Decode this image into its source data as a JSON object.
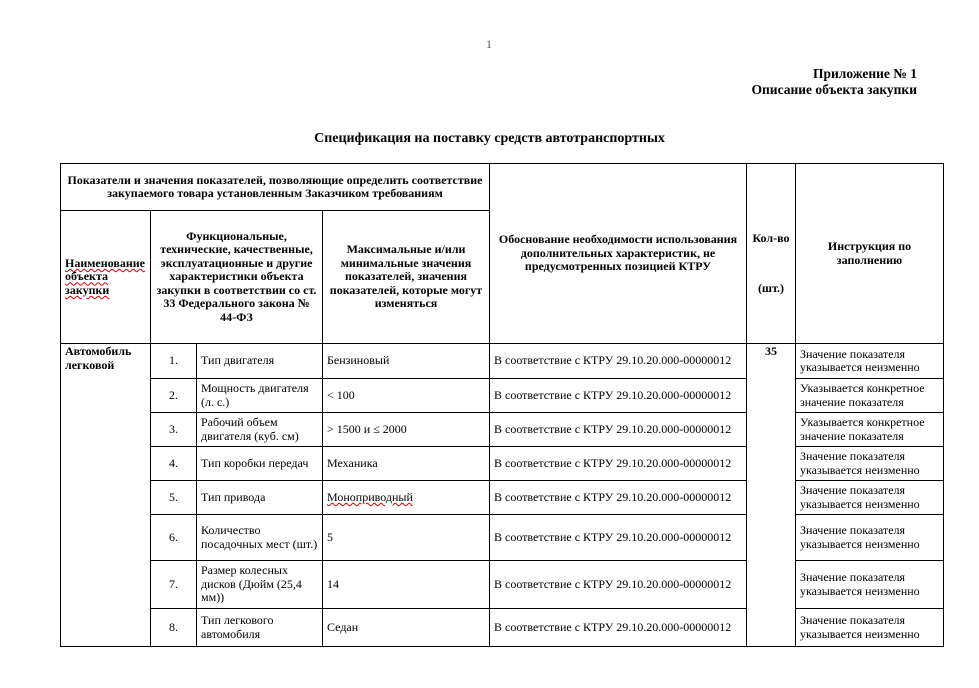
{
  "page_number": "1",
  "appendix": {
    "line1": "Приложение № 1",
    "line2": "Описание объекта закупки"
  },
  "title": "Спецификация на поставку средств автотранспортных",
  "header": {
    "group": "Показатели и значения показателей, позволяющие определить соответствие закупаемого товара установленным Заказчиком требованиям",
    "name": "Наименование объекта закупки",
    "characteristics": "Функциональные, технические, качественные, эксплуатационные и другие характеристики объекта закупки в соответствии со ст. 33 Федерального закона № 44-ФЗ",
    "values": "Максимальные и/или минимальные значения показателей, значения показателей, которые могут изменяться",
    "justification": "Обоснование необходимости использования дополнительных характеристик, не предусмотренных позицией КТРУ",
    "qty": "Кол-во",
    "qty_unit": "(шт.)",
    "instruction": "Инструкция по заполнению"
  },
  "item": {
    "name": "Автомобиль легковой",
    "qty": "35"
  },
  "rows": [
    {
      "num": "1.",
      "char": "Тип двигателя",
      "value": "Бензиновый",
      "just": "В соответствие с КТРУ 29.10.20.000-00000012",
      "instr": "Значение показателя указывается неизменно"
    },
    {
      "num": "2.",
      "char": "Мощность двигателя (л. с.)",
      "value": "< 100",
      "just": "В соответствие с КТРУ 29.10.20.000-00000012",
      "instr": "Указывается конкретное значение показателя"
    },
    {
      "num": "3.",
      "char": "Рабочий объем двигателя (куб. см)",
      "value": "> 1500  и  ≤ 2000",
      "just": "В соответствие с КТРУ 29.10.20.000-00000012",
      "instr": "Указывается конкретное значение показателя"
    },
    {
      "num": "4.",
      "char": "Тип коробки передач",
      "value": "Механика",
      "just": "В соответствие с КТРУ 29.10.20.000-00000012",
      "instr": "Значение показателя указывается неизменно"
    },
    {
      "num": "5.",
      "char": "Тип привода",
      "value": "Моноприводный",
      "just": "В соответствие с КТРУ 29.10.20.000-00000012",
      "instr": "Значение показателя указывается неизменно"
    },
    {
      "num": "6.",
      "char": "Количество посадочных мест (шт.)",
      "value": "5",
      "just": "В соответствие с КТРУ 29.10.20.000-00000012",
      "instr": "Значение показателя указывается неизменно"
    },
    {
      "num": "7.",
      "char": "Размер колесных дисков (Дюйм (25,4 мм))",
      "value": "14",
      "just": "В соответствие с КТРУ 29.10.20.000-00000012",
      "instr": "Значение показателя указывается неизменно"
    },
    {
      "num": "8.",
      "char": "Тип легкового автомобиля",
      "value": "Седан",
      "just": "В соответствие с КТРУ 29.10.20.000-00000012",
      "instr": "Значение показателя указывается неизменно"
    }
  ]
}
